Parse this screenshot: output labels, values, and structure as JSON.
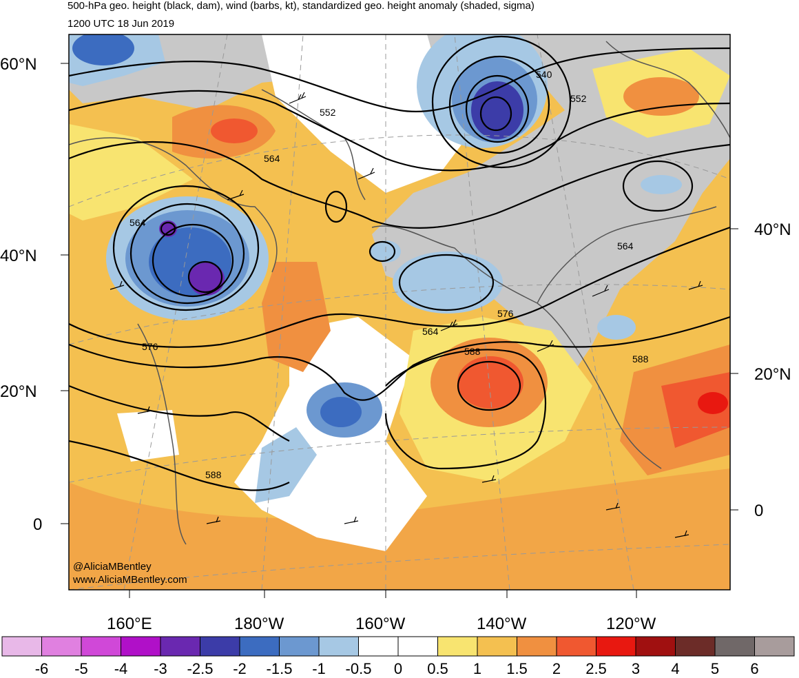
{
  "header": {
    "title": "500-hPa geo. height (black, dam), wind (barbs, kt), standardized geo. height anomaly (shaded, sigma)",
    "timestamp": "1200 UTC 18 Jun 2019"
  },
  "map": {
    "lat_labels_left": [
      "60°N",
      "40°N",
      "20°N",
      "0"
    ],
    "lat_labels_right": [
      "40°N",
      "20°N",
      "0"
    ],
    "lon_labels": [
      "160°E",
      "180°W",
      "160°W",
      "140°W",
      "120°W"
    ],
    "contour_labels": [
      "564",
      "552",
      "564",
      "540",
      "552",
      "564",
      "576",
      "564",
      "576",
      "588",
      "588",
      "588"
    ],
    "credit": [
      "@AliciaMBentley",
      "www.AliciaMBentley.com"
    ]
  },
  "colorbar": {
    "labels": [
      "-6",
      "-5",
      "-4",
      "-3",
      "-2.5",
      "-2",
      "-1.5",
      "-1",
      "-0.5",
      "0",
      "0.5",
      "1",
      "1.5",
      "2",
      "2.5",
      "3",
      "4",
      "5",
      "6"
    ],
    "colors": [
      "#e8b8e8",
      "#e080e0",
      "#d048d8",
      "#b010c8",
      "#6a28b0",
      "#3c3ca8",
      "#3c6cc0",
      "#6c98d0",
      "#a6c8e4",
      "#ffffff",
      "#ffffff",
      "#f8e470",
      "#f4c050",
      "#f09040",
      "#f05830",
      "#e81810",
      "#a01010",
      "#6c2c28",
      "#706868",
      "#a89c9c"
    ]
  }
}
